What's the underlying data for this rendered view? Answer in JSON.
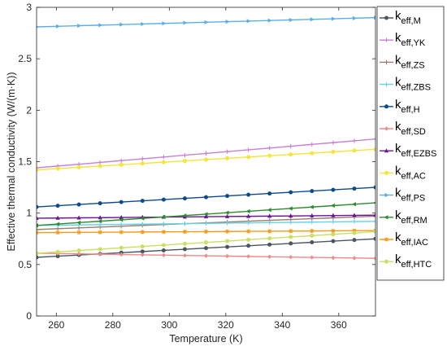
{
  "chart_data": {
    "type": "line",
    "xlabel": "Temperature (K)",
    "ylabel": "Effective thermal conductivity (W/(m·K))",
    "xlim": [
      253,
      373
    ],
    "ylim": [
      0,
      3
    ],
    "xticks": [
      260,
      280,
      300,
      320,
      340,
      360
    ],
    "yticks": [
      0,
      0.5,
      1,
      1.5,
      2,
      2.5,
      3
    ],
    "xticklabels": [
      "260",
      "280",
      "300",
      "320",
      "340",
      "360"
    ],
    "yticklabels": [
      "0",
      "0.5",
      "1",
      "1.5",
      "2",
      "2.5",
      "3"
    ],
    "grid": false,
    "legend_position": "right-outside",
    "x_start": 253,
    "x_end": 373,
    "n_points": 17,
    "series": [
      {
        "label_main": "k",
        "label_sub": "eff,M",
        "color": "#4a5661",
        "marker": "circle",
        "start": 0.57,
        "end": 0.75
      },
      {
        "label_main": "k",
        "label_sub": "eff,YK",
        "color": "#c87fd6",
        "marker": "plus",
        "start": 1.44,
        "end": 1.72
      },
      {
        "label_main": "k",
        "label_sub": "eff,ZS",
        "color": "#9e7a70",
        "marker": "plus",
        "start": 0.84,
        "end": 0.97
      },
      {
        "label_main": "k",
        "label_sub": "eff,ZBS",
        "color": "#5fd4e6",
        "marker": "plus",
        "start": 0.88,
        "end": 0.92
      },
      {
        "label_main": "k",
        "label_sub": "eff,H",
        "color": "#0c4a8c",
        "marker": "circle",
        "start": 1.06,
        "end": 1.25
      },
      {
        "label_main": "k",
        "label_sub": "eff,SD",
        "color": "#ef8a8a",
        "marker": "diamond",
        "start": 0.61,
        "end": 0.56
      },
      {
        "label_main": "k",
        "label_sub": "eff,EZBS",
        "color": "#6a1596",
        "marker": "triangle-up",
        "start": 0.95,
        "end": 0.98
      },
      {
        "label_main": "k",
        "label_sub": "eff,AC",
        "color": "#f5e43a",
        "marker": "circle",
        "start": 1.42,
        "end": 1.62
      },
      {
        "label_main": "k",
        "label_sub": "eff,PS",
        "color": "#5aaee8",
        "marker": "triangle-right",
        "start": 2.81,
        "end": 2.9
      },
      {
        "label_main": "k",
        "label_sub": "eff,RM",
        "color": "#2d8a2d",
        "marker": "triangle-left",
        "start": 0.88,
        "end": 1.1
      },
      {
        "label_main": "k",
        "label_sub": "eff,IAC",
        "color": "#f59a1a",
        "marker": "star",
        "start": 0.81,
        "end": 0.83
      },
      {
        "label_main": "k",
        "label_sub": "eff,HTC",
        "color": "#c9e060",
        "marker": "circle",
        "start": 0.61,
        "end": 0.82
      }
    ]
  }
}
